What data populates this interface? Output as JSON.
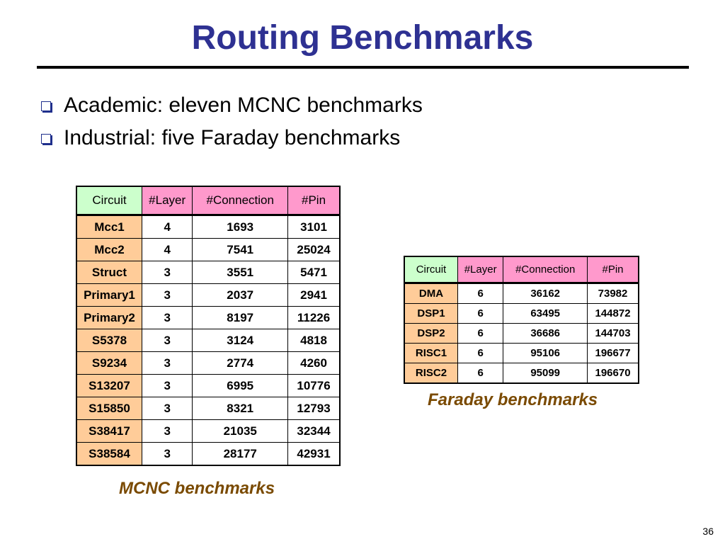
{
  "slide": {
    "title": "Routing Benchmarks",
    "bullets": [
      "Academic: eleven MCNC benchmarks",
      "Industrial: five Faraday benchmarks"
    ],
    "page_number": "36",
    "colors": {
      "title": "#2e3192",
      "caption": "#7a4a00",
      "header_circuit": "#ccffcc",
      "header_metrics": "#ff99cc",
      "row_label": "#ffcc99"
    }
  },
  "mcnc": {
    "caption": "MCNC benchmarks",
    "headers": [
      "Circuit",
      "#Layer",
      "#Connection",
      "#Pin"
    ],
    "rows": [
      [
        "Mcc1",
        "4",
        "1693",
        "3101"
      ],
      [
        "Mcc2",
        "4",
        "7541",
        "25024"
      ],
      [
        "Struct",
        "3",
        "3551",
        "5471"
      ],
      [
        "Primary1",
        "3",
        "2037",
        "2941"
      ],
      [
        "Primary2",
        "3",
        "8197",
        "11226"
      ],
      [
        "S5378",
        "3",
        "3124",
        "4818"
      ],
      [
        "S9234",
        "3",
        "2774",
        "4260"
      ],
      [
        "S13207",
        "3",
        "6995",
        "10776"
      ],
      [
        "S15850",
        "3",
        "8321",
        "12793"
      ],
      [
        "S38417",
        "3",
        "21035",
        "32344"
      ],
      [
        "S38584",
        "3",
        "28177",
        "42931"
      ]
    ]
  },
  "faraday": {
    "caption": "Faraday benchmarks",
    "headers": [
      "Circuit",
      "#Layer",
      "#Connection",
      "#Pin"
    ],
    "rows": [
      [
        "DMA",
        "6",
        "36162",
        "73982"
      ],
      [
        "DSP1",
        "6",
        "63495",
        "144872"
      ],
      [
        "DSP2",
        "6",
        "36686",
        "144703"
      ],
      [
        "RISC1",
        "6",
        "95106",
        "196677"
      ],
      [
        "RISC2",
        "6",
        "95099",
        "196670"
      ]
    ]
  }
}
